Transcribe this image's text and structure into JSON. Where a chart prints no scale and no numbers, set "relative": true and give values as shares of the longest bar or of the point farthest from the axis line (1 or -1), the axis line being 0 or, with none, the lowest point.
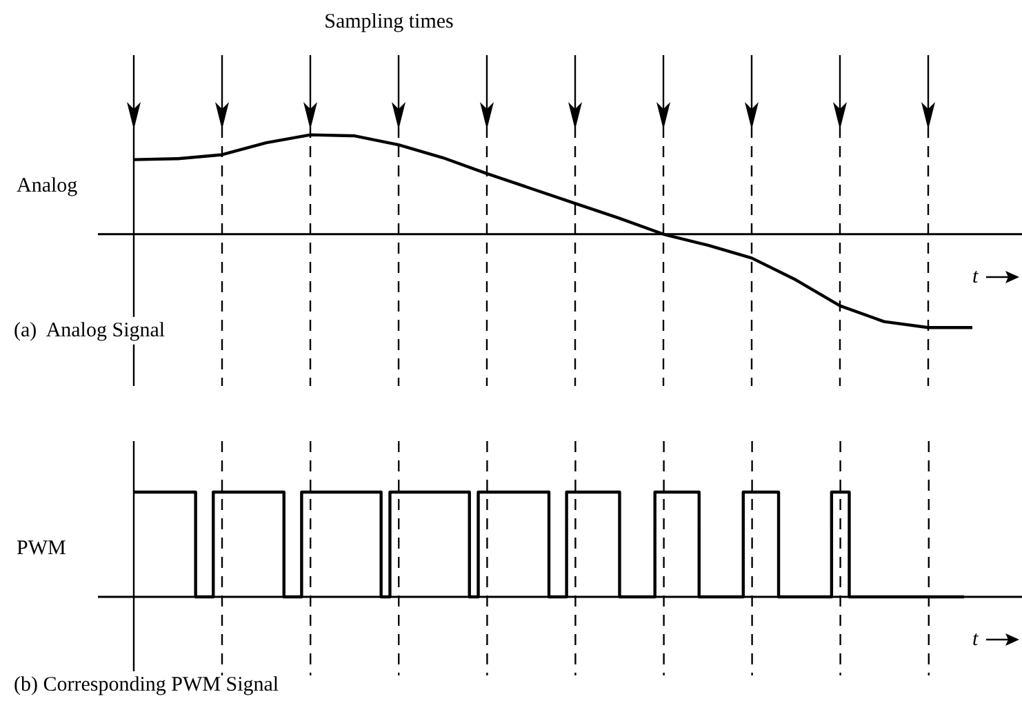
{
  "chart_data": [
    {
      "type": "line",
      "title": "(a)  Analog Signal",
      "ylabel": "Analog",
      "xlabel": "t",
      "annotations": [
        "Sampling times"
      ],
      "relative": true,
      "tick_labels": false,
      "grid": "x",
      "legend": false,
      "marker": "none",
      "line_style": "solid",
      "categories": [
        null,
        null,
        null,
        null,
        null,
        null,
        null,
        null,
        null,
        null,
        null,
        null,
        null,
        null,
        null,
        null,
        null,
        null,
        null,
        null
      ],
      "series": [
        {
          "color": "#000000",
          "values": [
            0.75,
            0.76,
            0.8,
            0.92,
            1,
            0.99,
            0.9,
            0.77,
            0.61,
            0.46,
            0.31,
            0.16,
            0,
            -0.11,
            -0.24,
            -0.46,
            -0.72,
            -0.88,
            -0.94,
            -0.94
          ]
        }
      ]
    },
    {
      "type": "step",
      "title": "(b) Corresponding PWM Signal",
      "ylabel": "PWM",
      "xlabel": "t",
      "relative": true,
      "tick_labels": false,
      "grid": "x",
      "legend": false,
      "marker": "none",
      "line_style": "solid",
      "categories": [
        null,
        null,
        null,
        null,
        null,
        null,
        null,
        null,
        null,
        null,
        null,
        null,
        null,
        null,
        null,
        null,
        null,
        null,
        null,
        null,
        null,
        null,
        null,
        null,
        null,
        null,
        null,
        null,
        null,
        null,
        null,
        null,
        null,
        null,
        null,
        null,
        null,
        null,
        null,
        null,
        null,
        null,
        null,
        null,
        null,
        null,
        null,
        null,
        null,
        null,
        null,
        null,
        null,
        null,
        null,
        null,
        null,
        null,
        null,
        null,
        null,
        null,
        null,
        null,
        null,
        null,
        null,
        null,
        null,
        null,
        null,
        null,
        null,
        null,
        null,
        null,
        null,
        null,
        null,
        null,
        null,
        null,
        null,
        null,
        null,
        null,
        null,
        null,
        null,
        null,
        null,
        null,
        null,
        null,
        null
      ],
      "series": [
        {
          "color": "#000000",
          "values": [
            1,
            1,
            1,
            1,
            1,
            1,
            1,
            1,
            0,
            0,
            1,
            1,
            1,
            1,
            1,
            1,
            1,
            1,
            0,
            0,
            1,
            1,
            1,
            1,
            1,
            1,
            1,
            1,
            1,
            0,
            1,
            1,
            1,
            1,
            1,
            1,
            1,
            1,
            1,
            0,
            1,
            1,
            1,
            1,
            1,
            1,
            1,
            1,
            0,
            0,
            1,
            1,
            1,
            1,
            1,
            1,
            0,
            0,
            0,
            0,
            1,
            1,
            1,
            1,
            1,
            0,
            0,
            0,
            0,
            0,
            1,
            1,
            1,
            1,
            0,
            0,
            0,
            0,
            0,
            0,
            1,
            1,
            0,
            0,
            0,
            0,
            0,
            0,
            0,
            0,
            0,
            0,
            0,
            0,
            0
          ]
        }
      ]
    }
  ]
}
